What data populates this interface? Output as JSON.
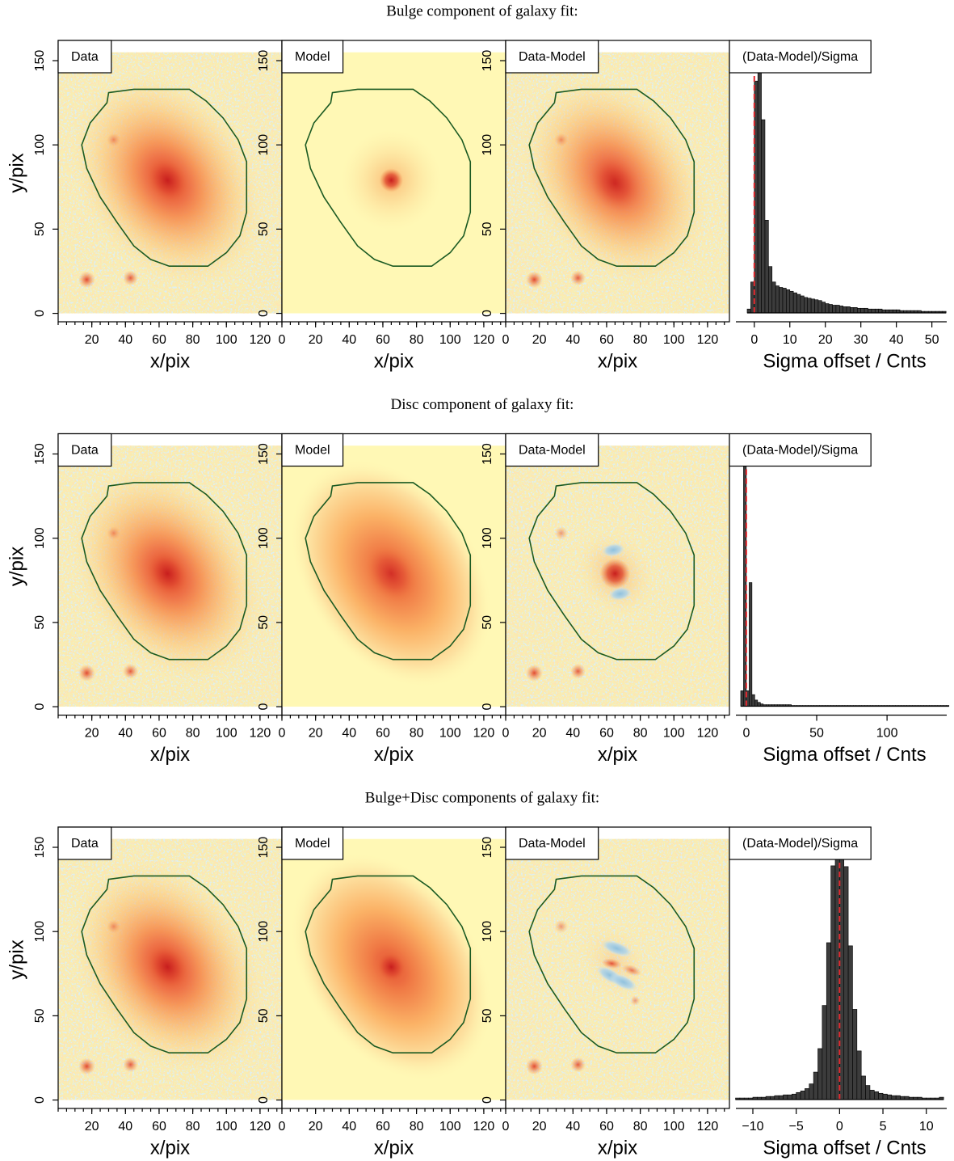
{
  "chart_data": [
    {
      "type": "panel-row",
      "title": "Bulge component of galaxy fit:",
      "panels": [
        {
          "type": "image",
          "label": "Data",
          "xlabel": "x/pix",
          "ylabel": "y/pix",
          "xlim": [
            0,
            133
          ],
          "ylim": [
            -5,
            162
          ],
          "xticks": [
            20,
            40,
            60,
            80,
            100,
            120
          ],
          "yticks": [
            0,
            50,
            100,
            150
          ]
        },
        {
          "type": "image",
          "label": "Model",
          "xlabel": "x/pix",
          "xlim": [
            0,
            133
          ],
          "ylim": [
            -5,
            162
          ],
          "xticks": [
            0,
            20,
            40,
            60,
            80,
            100,
            120
          ],
          "yticks": [
            0,
            50,
            100,
            150
          ]
        },
        {
          "type": "image",
          "label": "Data-Model",
          "xlabel": "x/pix",
          "xlim": [
            0,
            133
          ],
          "ylim": [
            -5,
            162
          ],
          "xticks": [
            0,
            20,
            40,
            60,
            80,
            100,
            120
          ],
          "yticks": [
            0,
            50,
            100,
            150
          ]
        },
        {
          "type": "histogram",
          "label": "(Data-Model)/Sigma",
          "xlabel": "Sigma offset / Cnts",
          "xlim": [
            -7,
            56
          ],
          "xticks": [
            0,
            10,
            20,
            30,
            40,
            50
          ],
          "bins": [
            -2,
            -1,
            0,
            1,
            2,
            3,
            4,
            5,
            6,
            7,
            8,
            9,
            10,
            11,
            12,
            13,
            14,
            15,
            16,
            17,
            18,
            19,
            20,
            21,
            22,
            23,
            24,
            25,
            26,
            27,
            28,
            29,
            30,
            31,
            32,
            33,
            34,
            35,
            36,
            37,
            38,
            39,
            40,
            41,
            42,
            43,
            44,
            45,
            46,
            47,
            48,
            49,
            50,
            51,
            52,
            53,
            54
          ],
          "counts": [
            5,
            40,
            300,
            340,
            250,
            120,
            60,
            40,
            35,
            33,
            32,
            30,
            28,
            26,
            24,
            22,
            20,
            19,
            18,
            17,
            16,
            14,
            12,
            11,
            10,
            10,
            9,
            8,
            8,
            7,
            7,
            6,
            6,
            6,
            5,
            5,
            5,
            5,
            4,
            4,
            4,
            4,
            4,
            3,
            3,
            3,
            3,
            3,
            3,
            2,
            2,
            2,
            2,
            2,
            2,
            2
          ],
          "color": "#3c3c3c",
          "vline": 0,
          "vline_color": "#e0282e"
        }
      ]
    },
    {
      "type": "panel-row",
      "title": "Disc component of galaxy fit:",
      "panels": [
        {
          "type": "image",
          "label": "Data",
          "xlabel": "x/pix",
          "ylabel": "y/pix",
          "xlim": [
            0,
            133
          ],
          "ylim": [
            -5,
            162
          ],
          "xticks": [
            20,
            40,
            60,
            80,
            100,
            120
          ],
          "yticks": [
            0,
            50,
            100,
            150
          ]
        },
        {
          "type": "image",
          "label": "Model",
          "xlabel": "x/pix",
          "xlim": [
            0,
            133
          ],
          "ylim": [
            -5,
            162
          ],
          "xticks": [
            0,
            20,
            40,
            60,
            80,
            100,
            120
          ],
          "yticks": [
            0,
            50,
            100,
            150
          ]
        },
        {
          "type": "image",
          "label": "Data-Model",
          "xlabel": "x/pix",
          "xlim": [
            0,
            133
          ],
          "ylim": [
            -5,
            162
          ],
          "xticks": [
            0,
            20,
            40,
            60,
            80,
            100,
            120
          ],
          "yticks": [
            0,
            50,
            100,
            150
          ]
        },
        {
          "type": "histogram",
          "label": "(Data-Model)/Sigma",
          "xlabel": "Sigma offset / Cnts",
          "xlim": [
            -12,
            147
          ],
          "xticks": [
            0,
            50,
            100
          ],
          "bins": [
            -4,
            -2,
            0,
            2,
            4,
            6,
            8,
            10,
            12,
            14,
            16,
            18,
            20,
            22,
            24,
            26,
            28,
            30,
            32,
            34,
            36,
            38,
            40,
            42,
            44,
            46,
            48,
            50,
            52,
            54,
            56,
            58,
            60,
            62,
            64,
            66,
            68,
            70,
            72,
            74,
            76,
            78,
            80,
            82,
            84,
            86,
            88,
            90,
            92,
            94,
            96,
            98,
            100,
            102,
            104,
            106,
            108,
            110,
            112,
            114,
            116,
            118,
            120,
            122,
            124,
            126,
            128,
            130,
            132,
            134,
            136,
            138,
            140,
            142,
            144
          ],
          "counts": [
            20,
            340,
            20,
            160,
            15,
            8,
            5,
            3,
            2,
            2,
            2,
            2,
            2,
            2,
            2,
            2,
            2,
            2,
            1,
            1,
            1,
            1,
            1,
            1,
            1,
            1,
            1,
            1,
            1,
            1,
            1,
            1,
            1,
            1,
            1,
            1,
            1,
            1,
            1,
            1,
            1,
            1,
            1,
            1,
            1,
            1,
            1,
            1,
            1,
            1,
            1,
            1,
            1,
            1,
            1,
            1,
            1,
            1,
            1,
            1,
            1,
            1,
            1,
            1,
            1,
            1,
            1,
            1,
            1,
            1,
            1,
            1,
            1,
            1
          ],
          "color": "#3c3c3c",
          "vline": 0,
          "vline_color": "#e0282e"
        }
      ]
    },
    {
      "type": "panel-row",
      "title": "Bulge+Disc components of galaxy fit:",
      "panels": [
        {
          "type": "image",
          "label": "Data",
          "xlabel": "x/pix",
          "ylabel": "y/pix",
          "xlim": [
            0,
            133
          ],
          "ylim": [
            -5,
            162
          ],
          "xticks": [
            20,
            40,
            60,
            80,
            100,
            120
          ],
          "yticks": [
            0,
            50,
            100,
            150
          ]
        },
        {
          "type": "image",
          "label": "Model",
          "xlabel": "x/pix",
          "xlim": [
            0,
            133
          ],
          "ylim": [
            -5,
            162
          ],
          "xticks": [
            0,
            20,
            40,
            60,
            80,
            100,
            120
          ],
          "yticks": [
            0,
            50,
            100,
            150
          ]
        },
        {
          "type": "image",
          "label": "Data-Model",
          "xlabel": "x/pix",
          "xlim": [
            0,
            133
          ],
          "ylim": [
            -5,
            162
          ],
          "xticks": [
            0,
            20,
            40,
            60,
            80,
            100,
            120
          ],
          "yticks": [
            0,
            50,
            100,
            150
          ]
        },
        {
          "type": "histogram",
          "label": "(Data-Model)/Sigma",
          "xlabel": "Sigma offset / Cnts",
          "xlim": [
            -12.7,
            13.1
          ],
          "xticks": [
            {
              "value": -10,
              "label": "−10"
            },
            {
              "value": -5,
              "label": "−5"
            },
            0,
            5,
            10
          ],
          "bins": [
            -12,
            -11.5,
            -11,
            -10.5,
            -10,
            -9.5,
            -9,
            -8.5,
            -8,
            -7.5,
            -7,
            -6.5,
            -6,
            -5.5,
            -5,
            -4.5,
            -4,
            -3.5,
            -3,
            -2.5,
            -2,
            -1.5,
            -1,
            -0.5,
            0,
            0.5,
            1,
            1.5,
            2,
            2.5,
            3,
            3.5,
            4,
            4.5,
            5,
            5.5,
            6,
            6.5,
            7,
            7.5,
            8,
            8.5,
            9,
            9.5,
            10,
            10.5,
            11,
            11.5,
            12
          ],
          "counts": [
            2,
            2,
            2,
            2,
            3,
            3,
            3,
            4,
            4,
            5,
            5,
            6,
            6,
            7,
            9,
            11,
            14,
            20,
            35,
            65,
            120,
            200,
            298,
            335,
            333,
            297,
            196,
            115,
            62,
            30,
            18,
            12,
            10,
            8,
            7,
            6,
            5,
            5,
            4,
            4,
            3,
            3,
            3,
            2,
            2,
            2,
            2,
            3
          ],
          "color": "#3c3c3c",
          "vline": 0,
          "vline_color": "#e0282e"
        }
      ]
    }
  ]
}
